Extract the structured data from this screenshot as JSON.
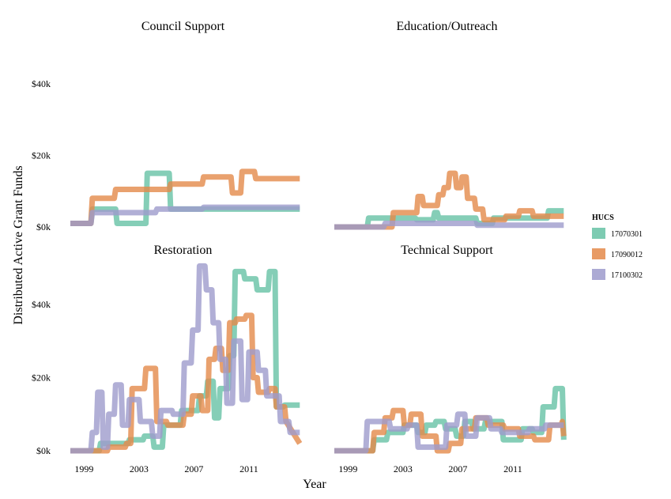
{
  "chart_data": {
    "type": "line",
    "ylabel": "Distributed Active Grant Funds",
    "xlabel": "Year",
    "x_ticks": [
      1999,
      2003,
      2007,
      2011
    ],
    "y_ticks": [
      {
        "value": 0,
        "label": "$0k"
      },
      {
        "value": 20000,
        "label": "$20k"
      },
      {
        "value": 40000,
        "label": "$40k"
      }
    ],
    "xlim": [
      1997.6,
      2014.8
    ],
    "ylim": [
      0,
      52000
    ],
    "grid": false,
    "legend": {
      "title": "HUCS",
      "placement": "right",
      "entries": [
        {
          "name": "17070301",
          "color": "#66c2a5"
        },
        {
          "name": "17090012",
          "color": "#e48a4a"
        },
        {
          "name": "17100302",
          "color": "#9d9bcc"
        }
      ]
    },
    "facets": [
      {
        "title": "Council Support",
        "series": [
          {
            "name": "17070301",
            "x": [
              1998,
              1999.5,
              1999.6,
              2001.3,
              2001.4,
              2003.5,
              2003.6,
              2005.2,
              2005.3,
              2007.5,
              2007.6,
              2014.7
            ],
            "y": [
              1000,
              1000,
              5000,
              5000,
              1000,
              1000,
              15000,
              15000,
              5000,
              5000,
              5000,
              5000
            ]
          },
          {
            "name": "17090012",
            "x": [
              1998,
              1999.5,
              1999.6,
              2001.2,
              2001.3,
              2005.2,
              2005.3,
              2007.6,
              2007.7,
              2009.7,
              2009.8,
              2010.4,
              2010.5,
              2011.4,
              2011.5,
              2014.7
            ],
            "y": [
              1000,
              1000,
              8000,
              8000,
              10500,
              10500,
              12000,
              12000,
              14000,
              14000,
              9500,
              9500,
              15500,
              15500,
              13500,
              13500
            ]
          },
          {
            "name": "17100302",
            "x": [
              1998,
              1999.5,
              1999.6,
              2004.2,
              2004.3,
              2007.6,
              2007.7,
              2014.7
            ],
            "y": [
              1000,
              1000,
              4000,
              4000,
              5000,
              5000,
              5500,
              5500
            ]
          }
        ]
      },
      {
        "title": "Education/Outreach",
        "series": [
          {
            "name": "17070301",
            "x": [
              1998,
              2000.4,
              2000.5,
              2003.9,
              2004.0,
              2005.2,
              2005.3,
              2005.5,
              2005.6,
              2008.3,
              2008.4,
              2009.5,
              2009.6,
              2013.5,
              2013.6,
              2014.7
            ],
            "y": [
              0,
              0,
              2500,
              2500,
              2000,
              2000,
              4000,
              4000,
              2500,
              2500,
              1000,
              1000,
              2500,
              2500,
              4500,
              4500
            ]
          },
          {
            "name": "17090012",
            "x": [
              1998,
              2002.2,
              2002.3,
              2004.0,
              2004.1,
              2004.4,
              2004.5,
              2005.5,
              2005.6,
              2005.9,
              2006.0,
              2006.3,
              2006.4,
              2006.8,
              2006.9,
              2007.2,
              2007.3,
              2007.6,
              2007.7,
              2008.2,
              2008.3,
              2008.8,
              2008.9,
              2010.4,
              2010.5,
              2011.4,
              2011.5,
              2012.4,
              2012.5,
              2014.7
            ],
            "y": [
              0,
              0,
              4000,
              4000,
              8500,
              8500,
              6000,
              6000,
              9000,
              9000,
              11000,
              11000,
              15000,
              15000,
              11000,
              11000,
              14000,
              14000,
              8000,
              8000,
              5000,
              5000,
              2000,
              2000,
              3000,
              3000,
              4500,
              4500,
              3000,
              3000
            ]
          },
          {
            "name": "17100302",
            "x": [
              1998,
              2001.6,
              2001.7,
              2008.3,
              2008.4,
              2014.7
            ],
            "y": [
              0,
              0,
              1000,
              1000,
              500,
              500
            ]
          }
        ]
      },
      {
        "title": "Restoration",
        "series": [
          {
            "name": "17070301",
            "x": [
              1998,
              2000.1,
              2000.2,
              2002.2,
              2002.3,
              2003.3,
              2003.4,
              2004.0,
              2004.1,
              2004.7,
              2004.8,
              2006.0,
              2006.1,
              2007.3,
              2007.4,
              2007.9,
              2008.0,
              2008.4,
              2008.5,
              2008.8,
              2008.9,
              2009.5,
              2009.6,
              2009.9,
              2010.0,
              2010.6,
              2010.7,
              2011.5,
              2011.6,
              2012.4,
              2012.5,
              2012.9,
              2013.0,
              2013.5,
              2013.6,
              2014.7
            ],
            "y": [
              0,
              0,
              2000,
              2000,
              3000,
              3000,
              4000,
              4000,
              1000,
              1000,
              7000,
              7000,
              11000,
              11000,
              15000,
              15000,
              19000,
              19000,
              9000,
              9000,
              17000,
              17000,
              26000,
              26000,
              49000,
              49000,
              47000,
              47000,
              44000,
              44000,
              49000,
              49000,
              12000,
              12000,
              12500,
              12500
            ]
          },
          {
            "name": "17090012",
            "x": [
              1998,
              2000.7,
              2000.8,
              2002.0,
              2002.1,
              2002.4,
              2002.5,
              2003.4,
              2003.5,
              2004.2,
              2004.3,
              2005.0,
              2005.1,
              2006.2,
              2006.3,
              2006.8,
              2006.9,
              2007.5,
              2007.6,
              2008.0,
              2008.1,
              2008.5,
              2008.6,
              2009.0,
              2009.1,
              2009.5,
              2009.6,
              2010.0,
              2010.1,
              2010.7,
              2010.8,
              2011.2,
              2011.3,
              2011.6,
              2011.7,
              2012.4,
              2012.5,
              2012.9,
              2013.0,
              2013.6,
              2013.7,
              2014.7
            ],
            "y": [
              0,
              0,
              1000,
              1000,
              2000,
              2000,
              17000,
              17000,
              22500,
              22500,
              8000,
              8000,
              7000,
              7000,
              10000,
              10000,
              15000,
              15000,
              11000,
              11000,
              25000,
              25000,
              28000,
              28000,
              22000,
              22000,
              35000,
              35000,
              36000,
              36000,
              37000,
              37000,
              20000,
              20000,
              16000,
              16000,
              17000,
              17000,
              12000,
              12000,
              8000,
              2000
            ]
          },
          {
            "name": "17100302",
            "x": [
              1998,
              1999.5,
              1999.6,
              1999.9,
              2000.0,
              2000.3,
              2000.4,
              2000.7,
              2000.8,
              2001.2,
              2001.3,
              2001.7,
              2001.8,
              2002.2,
              2002.3,
              2003.0,
              2003.1,
              2003.9,
              2004.0,
              2004.5,
              2004.6,
              2005.4,
              2005.5,
              2006.2,
              2006.3,
              2006.8,
              2006.9,
              2007.3,
              2007.4,
              2007.8,
              2007.9,
              2008.3,
              2008.4,
              2008.8,
              2008.9,
              2009.3,
              2009.4,
              2009.8,
              2009.9,
              2010.4,
              2010.5,
              2010.9,
              2011.0,
              2011.6,
              2011.7,
              2012.2,
              2012.3,
              2013.2,
              2013.3,
              2013.9,
              2014.0,
              2014.7
            ],
            "y": [
              0,
              0,
              5000,
              5000,
              16000,
              16000,
              1000,
              1000,
              10000,
              10000,
              18000,
              18000,
              7000,
              7000,
              14000,
              14000,
              8000,
              8000,
              4000,
              4000,
              11000,
              11000,
              10000,
              10000,
              24000,
              24000,
              33000,
              33000,
              50500,
              50500,
              44000,
              44000,
              35000,
              35000,
              25000,
              25000,
              13000,
              13000,
              30000,
              30000,
              14000,
              14000,
              27000,
              27000,
              22000,
              22000,
              15000,
              15000,
              8000,
              8000,
              5000,
              5000
            ]
          }
        ]
      },
      {
        "title": "Technical Support",
        "series": [
          {
            "name": "17070301",
            "x": [
              1998,
              2000.8,
              2000.9,
              2001.8,
              2001.9,
              2003.0,
              2003.1,
              2004.0,
              2004.1,
              2004.6,
              2004.7,
              2005.3,
              2005.4,
              2006.0,
              2006.1,
              2006.8,
              2006.9,
              2007.4,
              2007.5,
              2008.0,
              2008.1,
              2008.9,
              2009.0,
              2010.2,
              2010.3,
              2011.6,
              2011.7,
              2012.4,
              2012.5,
              2013.1,
              2013.2,
              2014.0,
              2014.1,
              2014.6,
              2014.7
            ],
            "y": [
              0,
              0,
              3000,
              3000,
              5000,
              5000,
              7000,
              7000,
              5000,
              5000,
              7000,
              7000,
              8000,
              8000,
              6000,
              6000,
              4000,
              4000,
              8000,
              8000,
              6000,
              6000,
              8000,
              8000,
              3000,
              3000,
              6000,
              6000,
              5000,
              5000,
              12000,
              12000,
              17000,
              17000,
              3000
            ]
          },
          {
            "name": "17090012",
            "x": [
              1998,
              2000.8,
              2000.9,
              2001.6,
              2001.7,
              2002.2,
              2002.3,
              2003.0,
              2003.1,
              2003.5,
              2003.6,
              2004.3,
              2004.4,
              2005.4,
              2005.5,
              2006.3,
              2006.4,
              2007.2,
              2007.3,
              2008.2,
              2008.3,
              2009.1,
              2009.2,
              2010.3,
              2010.4,
              2011.4,
              2011.5,
              2012.5,
              2012.6,
              2013.6,
              2013.7,
              2014.5,
              2014.6,
              2014.7
            ],
            "y": [
              0,
              0,
              5000,
              5000,
              9000,
              9000,
              11000,
              11000,
              7000,
              7000,
              10000,
              10000,
              4000,
              4000,
              0,
              0,
              2000,
              2000,
              6000,
              6000,
              9000,
              9000,
              7000,
              7000,
              6000,
              6000,
              4000,
              4000,
              3000,
              3000,
              7000,
              7000,
              8000,
              4000
            ]
          },
          {
            "name": "17100302",
            "x": [
              1998,
              2000.3,
              2000.4,
              2002.0,
              2002.1,
              2003.3,
              2003.4,
              2004.0,
              2004.1,
              2006.1,
              2006.2,
              2006.9,
              2007.0,
              2007.5,
              2007.6,
              2008.3,
              2008.4,
              2009.3,
              2009.4,
              2010.1,
              2010.2,
              2012.1,
              2012.2,
              2013.3,
              2013.4,
              2014.7
            ],
            "y": [
              0,
              0,
              8000,
              8000,
              6000,
              6000,
              7000,
              7000,
              1000,
              1000,
              7000,
              7000,
              10000,
              10000,
              4000,
              4000,
              9000,
              9000,
              6000,
              6000,
              5000,
              5000,
              6000,
              6000,
              7000,
              7000
            ]
          }
        ]
      }
    ]
  }
}
